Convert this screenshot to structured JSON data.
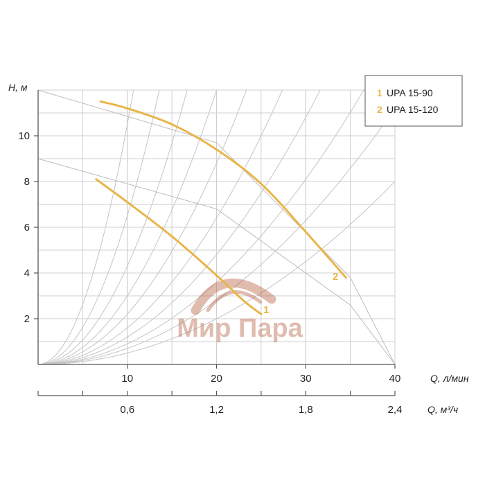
{
  "chart_data": {
    "type": "line",
    "title": "",
    "ylabel": "H, м",
    "xlabel": "Q, л/мин",
    "x2label": "Q, м³/ч",
    "xlim": [
      0,
      40
    ],
    "ylim": [
      0,
      12
    ],
    "x_ticks": [
      "10",
      "20",
      "30",
      "40"
    ],
    "x_tick_values": [
      10,
      20,
      30,
      40
    ],
    "y_ticks": [
      "2",
      "4",
      "6",
      "8",
      "10"
    ],
    "y_tick_values": [
      2,
      4,
      6,
      8,
      10
    ],
    "x2_ticks": [
      "0,6",
      "1,2",
      "1,8",
      "2,4"
    ],
    "x2_tick_values": [
      0.6,
      1.2,
      1.8,
      2.4
    ],
    "grid": true,
    "legend_position": "top-right",
    "color": "#e9b54a",
    "series": [
      {
        "name": "UPA 15-90",
        "marker": "1",
        "x": [
          6.5,
          10,
          15,
          20,
          23,
          25
        ],
        "y": [
          8.1,
          7.1,
          5.6,
          3.9,
          2.8,
          2.2
        ]
      },
      {
        "name": "UPA 15-120",
        "marker": "2",
        "x": [
          7,
          10,
          15,
          20,
          25,
          30,
          34.5
        ],
        "y": [
          11.5,
          11.2,
          10.5,
          9.4,
          7.9,
          5.8,
          3.8
        ]
      }
    ],
    "system_curves_a": [
      0.5,
      0.7,
      0.9,
      1.2,
      1.6,
      2.2,
      3,
      4.3,
      6.5,
      10.5
    ],
    "background_curves": [
      {
        "x": [
          0,
          20,
          35,
          40
        ],
        "y": [
          9,
          6.8,
          2.6,
          0
        ]
      },
      {
        "x": [
          0,
          20,
          35,
          40
        ],
        "y": [
          12,
          9.7,
          3.8,
          0
        ]
      }
    ]
  },
  "watermark": {
    "text": "Мир Пара"
  },
  "colors": {
    "accent": "#e9b54a",
    "grid": "#cfcfcf",
    "axis": "#555555",
    "watermark": "#b25a3a"
  }
}
